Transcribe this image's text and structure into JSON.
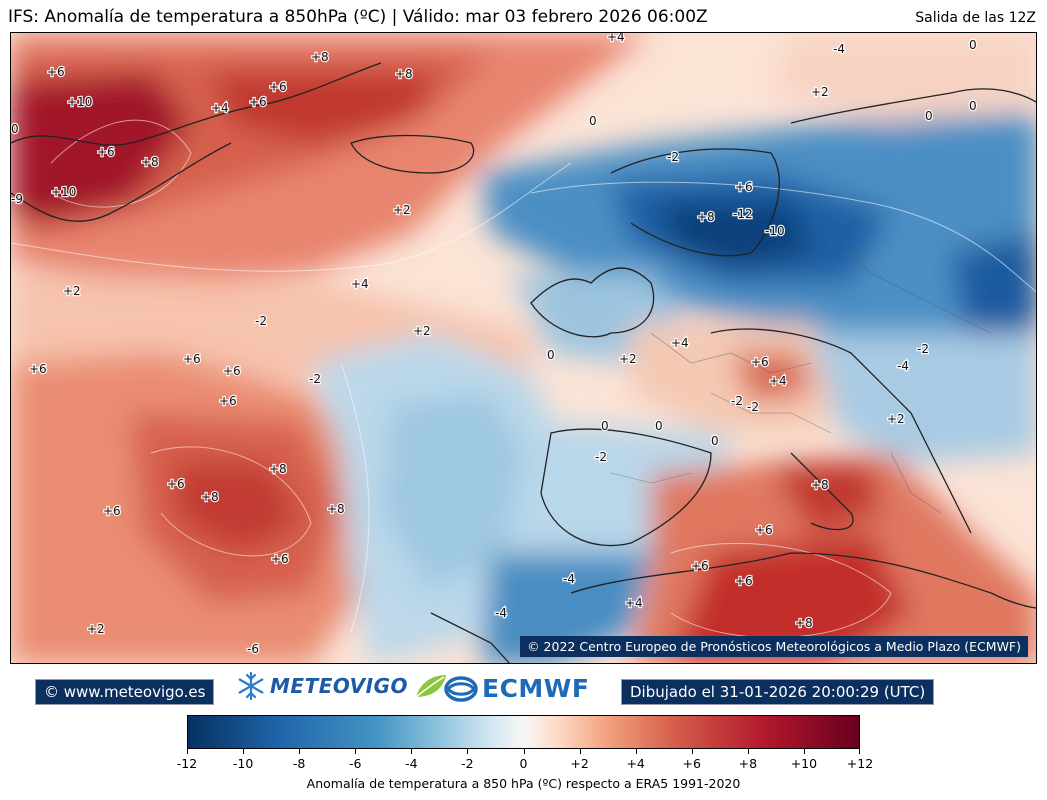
{
  "header": {
    "title": "IFS: Anomalía de temperatura a 850hPa  (ºC) | Válido: mar 03 febrero 2026 06:00Z",
    "run": "Salida de las 12Z"
  },
  "map": {
    "variable": "Anomalía de temperatura a 850hPa",
    "copyright": "© 2022 Centro Europeo de Pronósticos Meteorológicos a Medio Plazo (ECMWF)",
    "contour_labels": [
      "+6",
      "+10",
      "+6",
      "+8",
      "+10",
      "0",
      "-9",
      "+8",
      "+6",
      "+4",
      "+6",
      "+8",
      "+4",
      "-4",
      "0",
      "+2",
      "0",
      "0",
      "-2",
      "0",
      "+2",
      "+6",
      "+8",
      "-12",
      "-10",
      "+2",
      "+4",
      "-2",
      "+2",
      "+2",
      "+6",
      "-2",
      "+6",
      "+6",
      "0",
      "-2",
      "+4",
      "+6",
      "+4",
      "-2",
      "-4",
      "-2",
      "0",
      "0",
      "0",
      "-2",
      "+2",
      "+6",
      "+8",
      "+8",
      "+6",
      "+6",
      "+8",
      "+6",
      "+2",
      "-6",
      "+6",
      "-4",
      "-4",
      "+4",
      "+6",
      "+8",
      "+6",
      "+8"
    ]
  },
  "footer": {
    "website": "© www.meteovigo.es",
    "meteovigo_logo": "METEOVIGO",
    "ecmwf_logo": "ECMWF",
    "drawn": "Dibujado el 31-01-2026 20:00:29 (UTC)"
  },
  "colorbar": {
    "ticks": [
      "-12",
      "-10",
      "-8",
      "-6",
      "-4",
      "-2",
      "0",
      "+2",
      "+4",
      "+6",
      "+8",
      "+10",
      "+12"
    ],
    "title": "Anomalía de temperatura a 850 hPa (ºC) respecto a ERA5 1991-2020",
    "colors": [
      "#053061",
      "#2166ac",
      "#4393c3",
      "#92c5de",
      "#d1e5f0",
      "#f7f7f7",
      "#fddbc7",
      "#f4a582",
      "#d6604d",
      "#b2182b",
      "#67001f"
    ]
  },
  "icons": [
    "snowflake-icon",
    "leaf-icon",
    "ecmwf-icon"
  ]
}
